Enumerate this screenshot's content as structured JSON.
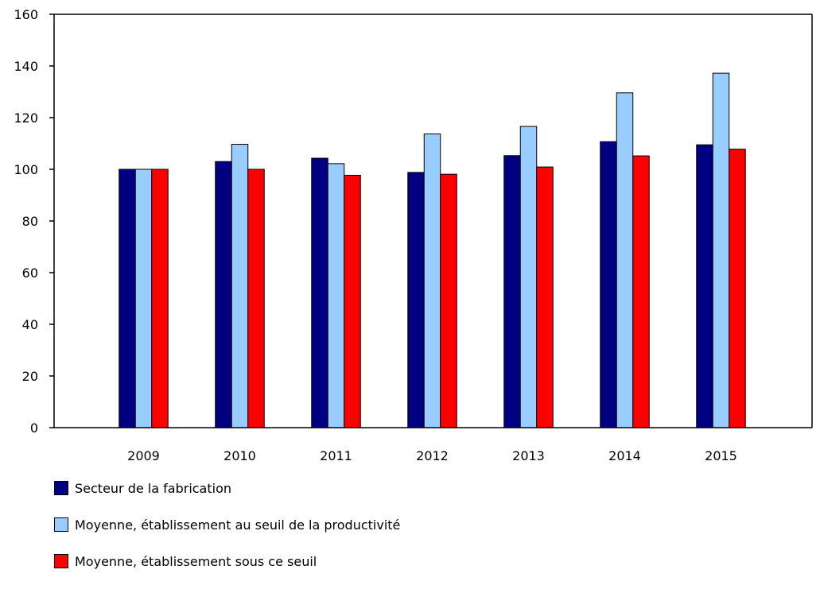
{
  "chart_data": {
    "type": "bar",
    "title": "",
    "xlabel": "",
    "ylabel": "",
    "categories": [
      "2009",
      "2010",
      "2011",
      "2012",
      "2013",
      "2014",
      "2015"
    ],
    "ylim": [
      0,
      160
    ],
    "yticks": [
      0,
      20,
      40,
      60,
      80,
      100,
      120,
      140,
      160
    ],
    "grid": false,
    "legend_position": "bottom-left",
    "series": [
      {
        "name": "Secteur de la fabrication",
        "color": "#000080",
        "values": [
          100,
          103,
          104.3,
          98.8,
          105.3,
          110.7,
          109.5
        ]
      },
      {
        "name": "Moyenne, établissement au seuil de la productivité",
        "color": "#99ccff",
        "values": [
          100,
          109.7,
          102.2,
          113.7,
          116.6,
          129.6,
          137.2
        ]
      },
      {
        "name": "Moyenne, établissement sous ce seuil",
        "color": "#ff0000",
        "values": [
          100,
          100,
          97.7,
          98.1,
          100.9,
          105.2,
          107.8
        ]
      }
    ]
  }
}
